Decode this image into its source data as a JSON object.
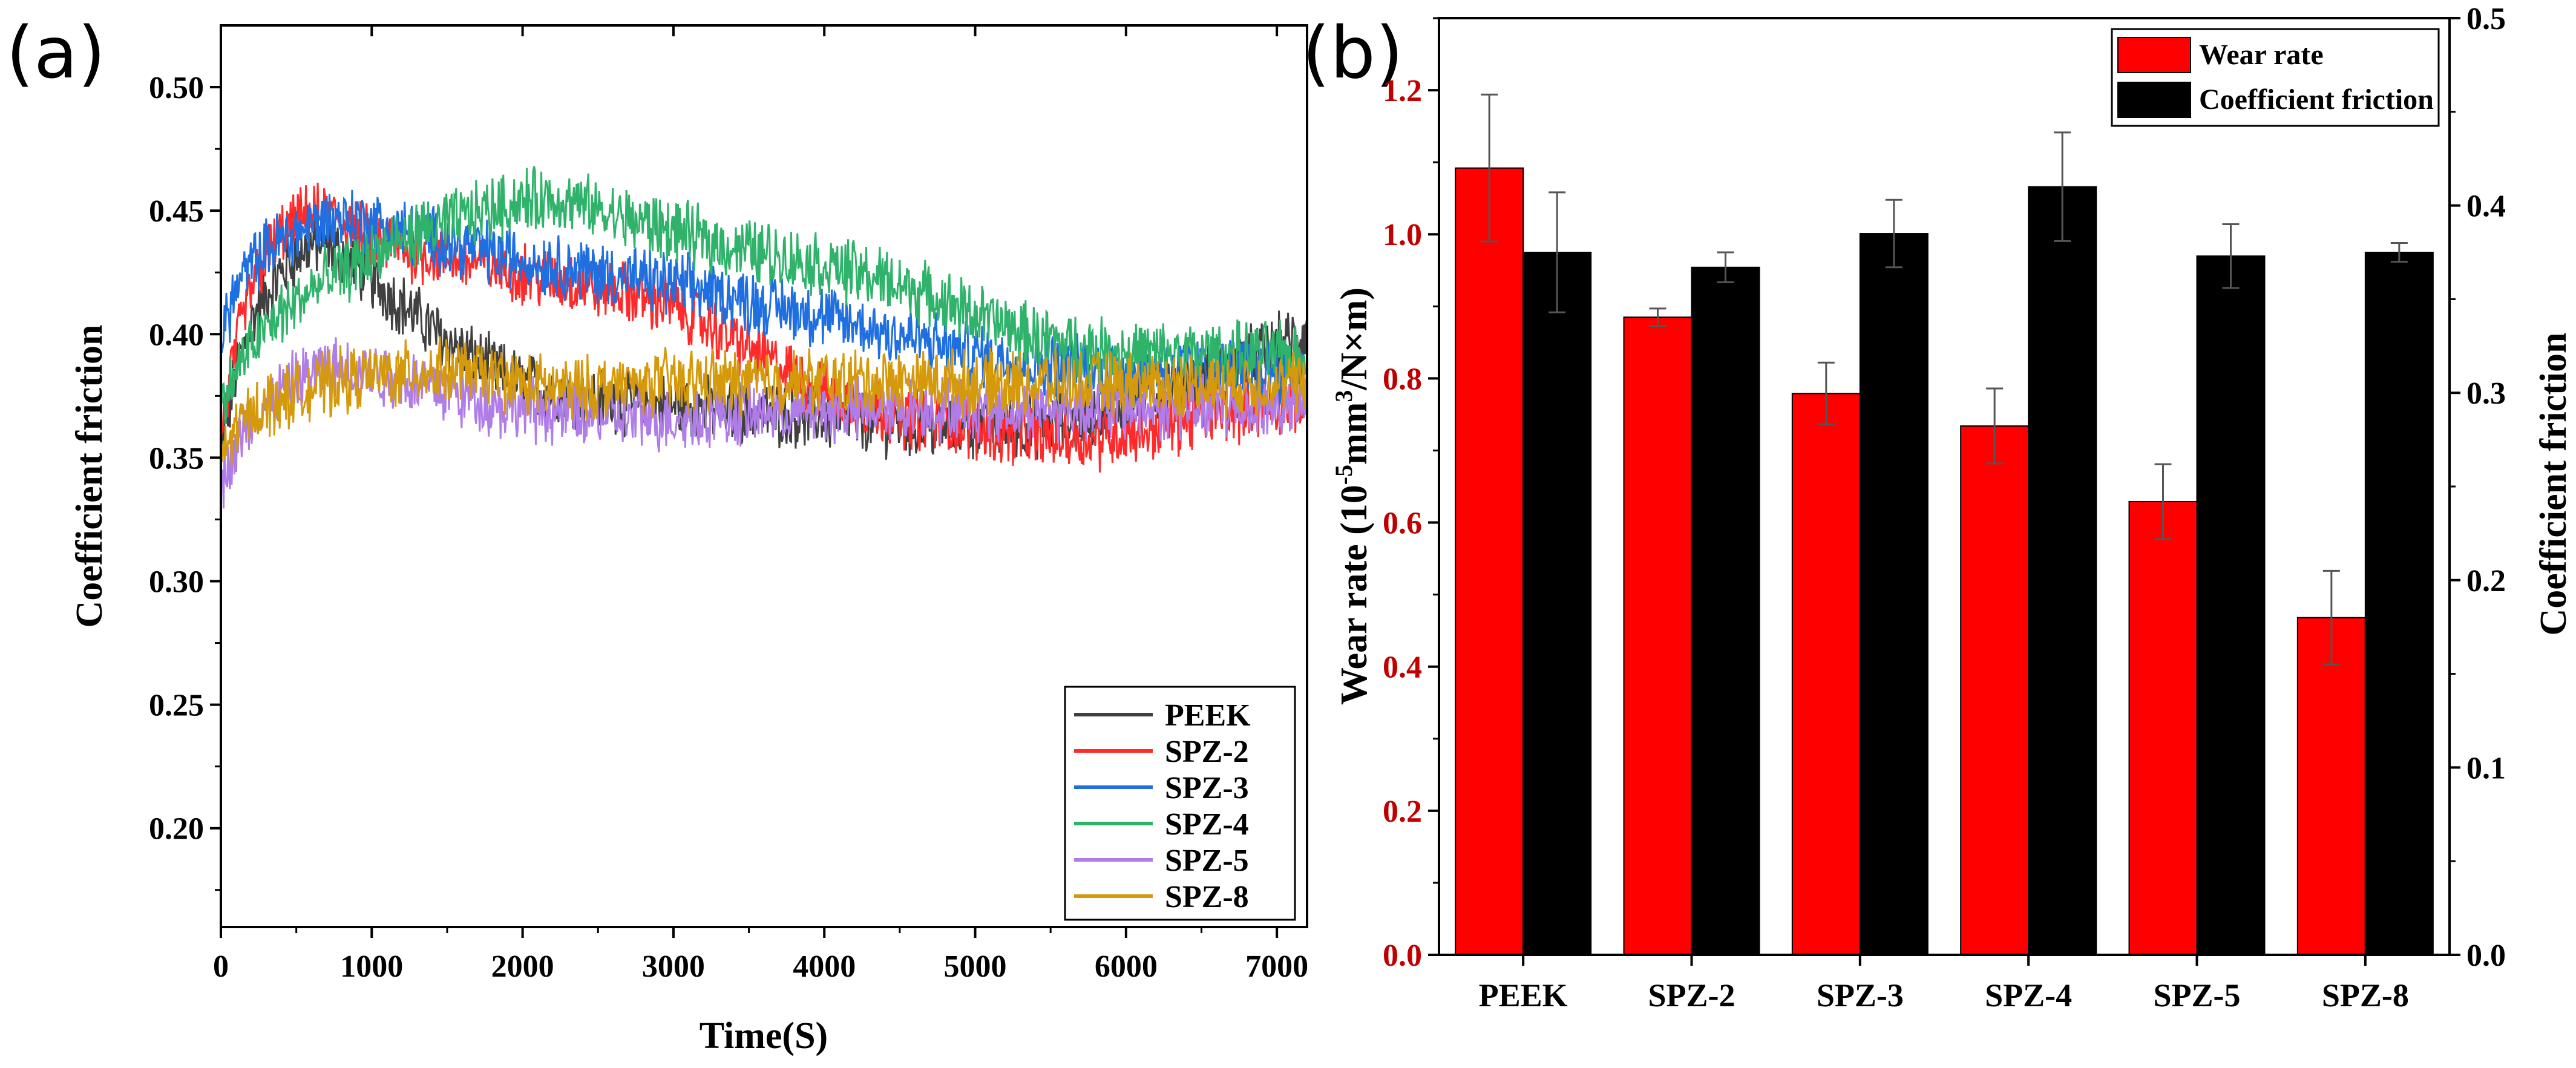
{
  "chart_data": [
    {
      "panel_label": "(a)",
      "type": "line",
      "xlabel": "Time(S)",
      "ylabel": "Coefficient friction",
      "xlim": [
        0,
        7200
      ],
      "ylim": [
        0.16,
        0.525
      ],
      "xticks": [
        0,
        1000,
        2000,
        3000,
        4000,
        5000,
        6000,
        7000
      ],
      "xtick_labels": [
        "0",
        "1000",
        "2000",
        "3000",
        "4000",
        "5000",
        "6000",
        "7000"
      ],
      "yticks": [
        0.2,
        0.25,
        0.3,
        0.35,
        0.4,
        0.45,
        0.5
      ],
      "ytick_labels": [
        "0.20",
        "0.25",
        "0.30",
        "0.35",
        "0.40",
        "0.45",
        "0.50"
      ],
      "legend_position": "bottom-right",
      "x": [
        0,
        100,
        200,
        300,
        400,
        500,
        600,
        700,
        800,
        900,
        1000,
        1200,
        1400,
        1600,
        1800,
        2000,
        2200,
        2400,
        2600,
        2800,
        3000,
        3200,
        3400,
        3600,
        3800,
        4000,
        4200,
        4400,
        4600,
        4800,
        5000,
        5200,
        5400,
        5600,
        5800,
        6000,
        6200,
        6400,
        6600,
        6800,
        7000,
        7200
      ],
      "series": [
        {
          "name": "PEEK",
          "color": "#404040",
          "values": [
            0.35,
            0.385,
            0.405,
            0.415,
            0.425,
            0.432,
            0.436,
            0.437,
            0.432,
            0.428,
            0.422,
            0.412,
            0.402,
            0.393,
            0.386,
            0.38,
            0.377,
            0.375,
            0.373,
            0.372,
            0.371,
            0.37,
            0.369,
            0.368,
            0.367,
            0.366,
            0.365,
            0.364,
            0.363,
            0.362,
            0.362,
            0.362,
            0.363,
            0.365,
            0.368,
            0.372,
            0.376,
            0.381,
            0.386,
            0.39,
            0.395,
            0.4
          ]
        },
        {
          "name": "SPZ-2",
          "color": "#ff2a2a",
          "values": [
            0.36,
            0.395,
            0.418,
            0.432,
            0.44,
            0.445,
            0.448,
            0.448,
            0.446,
            0.442,
            0.438,
            0.435,
            0.432,
            0.43,
            0.428,
            0.425,
            0.422,
            0.42,
            0.418,
            0.415,
            0.412,
            0.405,
            0.398,
            0.39,
            0.383,
            0.377,
            0.372,
            0.369,
            0.366,
            0.364,
            0.362,
            0.36,
            0.359,
            0.358,
            0.358,
            0.36,
            0.362,
            0.365,
            0.368,
            0.37,
            0.372,
            0.372
          ]
        },
        {
          "name": "SPZ-3",
          "color": "#1f6fe0",
          "values": [
            0.4,
            0.418,
            0.428,
            0.434,
            0.438,
            0.441,
            0.444,
            0.446,
            0.447,
            0.446,
            0.445,
            0.442,
            0.439,
            0.436,
            0.433,
            0.43,
            0.428,
            0.426,
            0.424,
            0.422,
            0.42,
            0.418,
            0.415,
            0.412,
            0.41,
            0.407,
            0.404,
            0.401,
            0.398,
            0.395,
            0.392,
            0.39,
            0.388,
            0.387,
            0.386,
            0.386,
            0.386,
            0.386,
            0.386,
            0.386,
            0.386,
            0.386
          ]
        },
        {
          "name": "SPZ-4",
          "color": "#2fb36a",
          "values": [
            0.37,
            0.385,
            0.395,
            0.402,
            0.408,
            0.413,
            0.418,
            0.422,
            0.425,
            0.428,
            0.432,
            0.438,
            0.443,
            0.447,
            0.451,
            0.454,
            0.455,
            0.452,
            0.448,
            0.445,
            0.442,
            0.438,
            0.435,
            0.433,
            0.43,
            0.428,
            0.425,
            0.422,
            0.418,
            0.413,
            0.408,
            0.403,
            0.399,
            0.396,
            0.394,
            0.393,
            0.392,
            0.392,
            0.392,
            0.392,
            0.392,
            0.392
          ]
        },
        {
          "name": "SPZ-5",
          "color": "#b07ce8",
          "values": [
            0.34,
            0.355,
            0.365,
            0.372,
            0.377,
            0.381,
            0.384,
            0.386,
            0.386,
            0.385,
            0.384,
            0.382,
            0.379,
            0.375,
            0.372,
            0.37,
            0.368,
            0.367,
            0.366,
            0.366,
            0.366,
            0.367,
            0.367,
            0.368,
            0.368,
            0.369,
            0.369,
            0.37,
            0.37,
            0.37,
            0.37,
            0.37,
            0.37,
            0.37,
            0.37,
            0.37,
            0.37,
            0.37,
            0.37,
            0.37,
            0.37,
            0.37
          ]
        },
        {
          "name": "SPZ-8",
          "color": "#d49a0c",
          "values": [
            0.35,
            0.362,
            0.368,
            0.372,
            0.374,
            0.376,
            0.378,
            0.38,
            0.381,
            0.382,
            0.383,
            0.384,
            0.385,
            0.385,
            0.383,
            0.38,
            0.378,
            0.378,
            0.379,
            0.38,
            0.381,
            0.381,
            0.381,
            0.381,
            0.381,
            0.381,
            0.381,
            0.381,
            0.381,
            0.381,
            0.38,
            0.38,
            0.38,
            0.38,
            0.38,
            0.38,
            0.38,
            0.38,
            0.38,
            0.38,
            0.38,
            0.38
          ]
        }
      ]
    },
    {
      "panel_label": "(b)",
      "type": "bar",
      "categories": [
        "PEEK",
        "SPZ-2",
        "SPZ-3",
        "SPZ-4",
        "SPZ-5",
        "SPZ-8"
      ],
      "ylabel_left_main": "Wear rate (10",
      "ylabel_left_sup1": "-5",
      "ylabel_left_mid": "mm",
      "ylabel_left_sup2": "3",
      "ylabel_left_end": "/N×m)",
      "ylabel_right": "Coefficient friction",
      "ylim_left": [
        0,
        1.3
      ],
      "ylim_right": [
        0,
        0.5
      ],
      "yticks_left": [
        0.0,
        0.2,
        0.4,
        0.6,
        0.8,
        1.0,
        1.2
      ],
      "ytick_labels_left": [
        "0.0",
        "0.2",
        "0.4",
        "0.6",
        "0.8",
        "1.0",
        "1.2"
      ],
      "yticks_right": [
        0.0,
        0.1,
        0.2,
        0.3,
        0.4,
        0.5
      ],
      "ytick_labels_right": [
        "0.0",
        "0.1",
        "0.2",
        "0.3",
        "0.4",
        "0.5"
      ],
      "left_axis_color": "#c00000",
      "legend_position": "top-right",
      "series": [
        {
          "name": "Wear rate",
          "axis": "left",
          "color": "#ff0000",
          "values": [
            1.092,
            0.885,
            0.779,
            0.734,
            0.629,
            0.468
          ],
          "errors": [
            0.102,
            0.012,
            0.043,
            0.052,
            0.052,
            0.065
          ]
        },
        {
          "name": "Coefficient friction",
          "axis": "right",
          "color": "#000000",
          "values": [
            0.375,
            0.367,
            0.385,
            0.41,
            0.373,
            0.375
          ],
          "errors": [
            0.032,
            0.008,
            0.018,
            0.029,
            0.017,
            0.005
          ]
        }
      ]
    }
  ]
}
